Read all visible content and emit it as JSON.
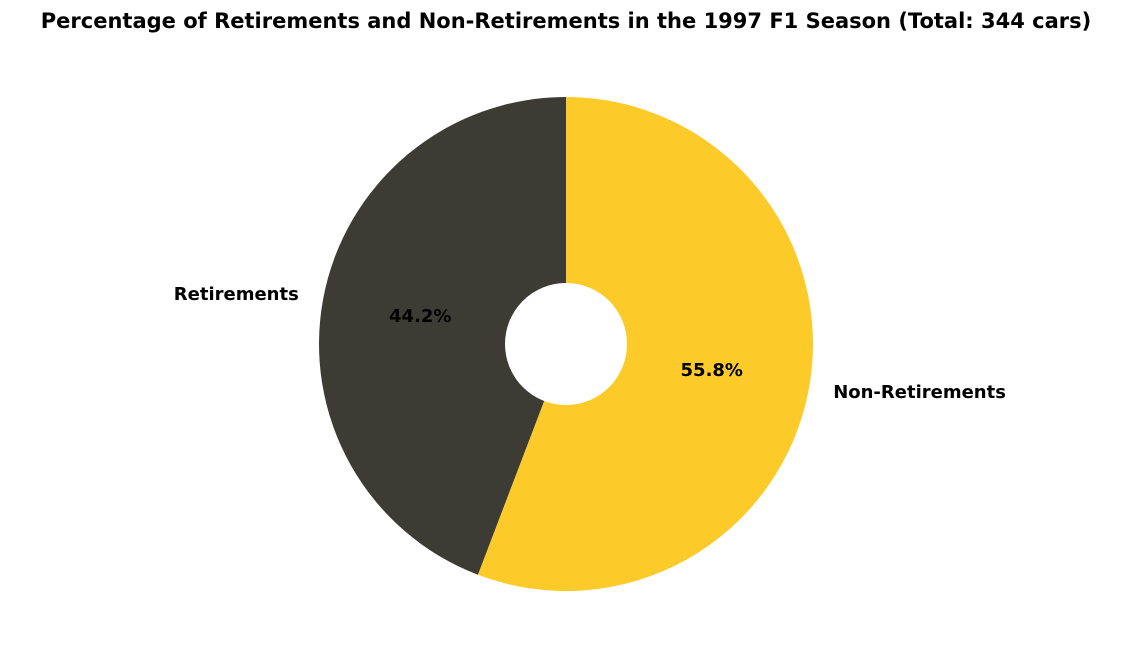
{
  "chart_data": {
    "type": "pie",
    "title": "Percentage of Retirements and Non-Retirements in the 1997 F1 Season (Total: 344 cars)",
    "donut": true,
    "start": "top",
    "direction": "counterclockwise",
    "legend": "none",
    "slices": [
      {
        "label": "Retirements",
        "value": 44.2,
        "pct_label": "44.2%",
        "color": "#3c3c35"
      },
      {
        "label": "Non-Retirements",
        "value": 55.8,
        "pct_label": "55.8%",
        "color": "#fccb2a"
      }
    ]
  }
}
